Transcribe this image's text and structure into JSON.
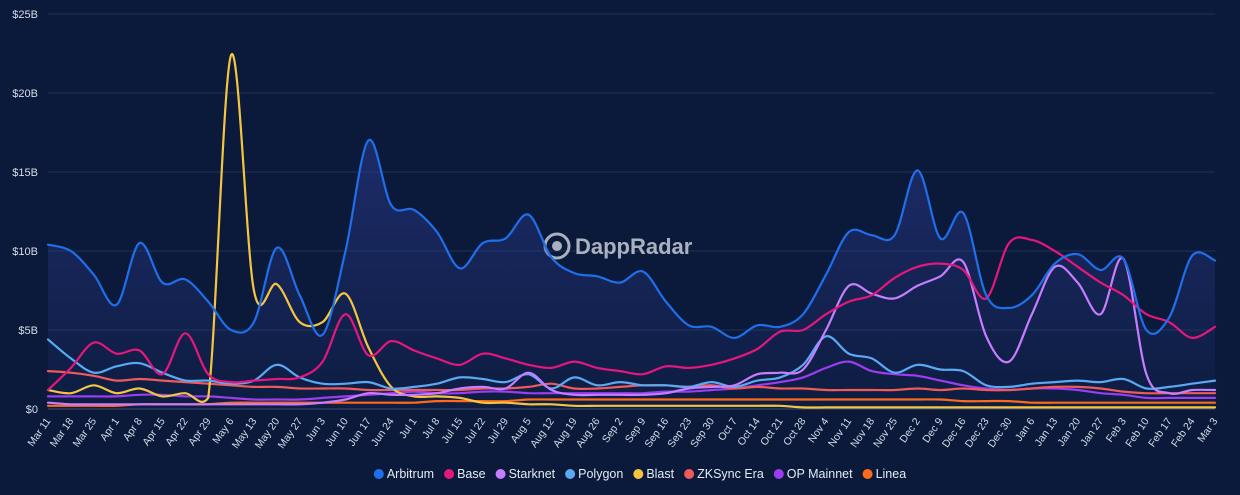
{
  "chart_data": {
    "type": "line",
    "watermark": "DappRadar",
    "y_ticks": [
      "$0",
      "$5B",
      "$10B",
      "$15B",
      "$20B",
      "$25B"
    ],
    "ylim": [
      0,
      25
    ],
    "categories": [
      "Mar 11",
      "Mar 18",
      "Mar 25",
      "Apr 1",
      "Apr 8",
      "Apr 15",
      "Apr 22",
      "Apr 29",
      "May 6",
      "May 13",
      "May 20",
      "May 27",
      "Jun 3",
      "Jun 10",
      "Jun 17",
      "Jun 24",
      "Jul 1",
      "Jul 8",
      "Jul 15",
      "Jul 22",
      "Jul 29",
      "Aug 5",
      "Aug 12",
      "Aug 19",
      "Aug 26",
      "Sep 2",
      "Sep 9",
      "Sep 16",
      "Sep 23",
      "Sep 30",
      "Oct 7",
      "Oct 14",
      "Oct 21",
      "Oct 28",
      "Nov 4",
      "Nov 11",
      "Nov 18",
      "Nov 25",
      "Dec 2",
      "Dec 9",
      "Dec 16",
      "Dec 23",
      "Dec 30",
      "Jan 6",
      "Jan 13",
      "Jan 20",
      "Jan 27",
      "Feb 3",
      "Feb 10",
      "Feb 17",
      "Feb 24",
      "Mar 3"
    ],
    "series": [
      {
        "name": "Arbitrum",
        "color": "#1f6feb",
        "fill": true,
        "values": [
          10.4,
          10.0,
          8.5,
          6.6,
          10.5,
          8.0,
          8.2,
          6.8,
          5.0,
          5.5,
          10.2,
          7.2,
          4.7,
          10.0,
          17.0,
          12.9,
          12.6,
          11.2,
          8.9,
          10.5,
          10.8,
          12.3,
          9.6,
          8.6,
          8.4,
          8.0,
          8.7,
          6.8,
          5.3,
          5.2,
          4.5,
          5.3,
          5.2,
          6.0,
          8.5,
          11.2,
          11.0,
          11.0,
          15.1,
          10.8,
          12.4,
          7.2,
          6.4,
          7.2,
          9.2,
          9.8,
          8.8,
          9.5,
          5.0,
          5.8,
          9.7,
          9.4
        ]
      },
      {
        "name": "Base",
        "color": "#e5177d",
        "fill": false,
        "values": [
          1.2,
          2.6,
          4.2,
          3.5,
          3.7,
          2.2,
          4.8,
          2.2,
          1.7,
          1.8,
          1.9,
          2.0,
          3.0,
          6.0,
          3.4,
          4.3,
          3.7,
          3.2,
          2.8,
          3.5,
          3.2,
          2.8,
          2.6,
          3.0,
          2.6,
          2.4,
          2.2,
          2.7,
          2.6,
          2.8,
          3.2,
          3.8,
          4.9,
          5.0,
          6.0,
          6.8,
          7.2,
          8.3,
          9.0,
          9.2,
          8.8,
          7.0,
          10.5,
          10.7,
          10.0,
          9.0,
          8.0,
          7.2,
          6.0,
          5.5,
          4.5,
          5.2
        ]
      },
      {
        "name": "Starknet",
        "color": "#c77dff",
        "fill": false,
        "values": [
          0.4,
          0.3,
          0.3,
          0.3,
          0.3,
          0.3,
          0.3,
          0.3,
          0.3,
          0.3,
          0.3,
          0.3,
          0.4,
          0.6,
          1.0,
          0.9,
          0.9,
          1.0,
          1.3,
          1.4,
          1.3,
          2.3,
          1.2,
          0.9,
          0.9,
          0.9,
          0.9,
          1.0,
          1.3,
          1.4,
          1.5,
          2.2,
          2.3,
          2.5,
          5.0,
          7.8,
          7.3,
          7.0,
          7.8,
          8.4,
          9.3,
          4.6,
          3.0,
          6.0,
          9.0,
          8.0,
          6.0,
          9.5,
          2.2,
          1.0,
          1.2,
          1.2
        ]
      },
      {
        "name": "Polygon",
        "color": "#5aa9f5",
        "fill": false,
        "values": [
          4.4,
          3.2,
          2.3,
          2.7,
          2.9,
          2.3,
          1.8,
          1.8,
          1.6,
          1.8,
          2.8,
          2.0,
          1.6,
          1.6,
          1.7,
          1.3,
          1.4,
          1.6,
          2.0,
          1.9,
          1.7,
          2.2,
          1.3,
          2.0,
          1.5,
          1.7,
          1.5,
          1.5,
          1.4,
          1.7,
          1.4,
          1.8,
          2.0,
          2.8,
          4.6,
          3.5,
          3.2,
          2.3,
          2.8,
          2.5,
          2.4,
          1.5,
          1.4,
          1.6,
          1.7,
          1.8,
          1.7,
          1.9,
          1.3,
          1.4,
          1.6,
          1.8
        ]
      },
      {
        "name": "Blast",
        "color": "#f5c542",
        "fill": false,
        "values": [
          1.2,
          1.0,
          1.5,
          1.0,
          1.3,
          0.8,
          1.0,
          0.7,
          22.4,
          7.5,
          7.9,
          5.5,
          5.5,
          7.3,
          3.9,
          1.4,
          0.8,
          0.8,
          0.7,
          0.4,
          0.4,
          0.3,
          0.3,
          0.2,
          0.2,
          0.2,
          0.2,
          0.2,
          0.2,
          0.2,
          0.2,
          0.2,
          0.2,
          0.1,
          0.1,
          0.1,
          0.1,
          0.1,
          0.1,
          0.1,
          0.1,
          0.1,
          0.1,
          0.1,
          0.1,
          0.1,
          0.1,
          0.1,
          0.1,
          0.1,
          0.1,
          0.1
        ]
      },
      {
        "name": "ZKSync Era",
        "color": "#f05a5a",
        "fill": false,
        "values": [
          2.4,
          2.3,
          2.1,
          1.8,
          1.9,
          1.8,
          1.7,
          1.6,
          1.5,
          1.4,
          1.4,
          1.3,
          1.3,
          1.3,
          1.2,
          1.2,
          1.2,
          1.2,
          1.2,
          1.3,
          1.3,
          1.4,
          1.6,
          1.3,
          1.3,
          1.4,
          1.5,
          1.5,
          1.4,
          1.5,
          1.3,
          1.4,
          1.3,
          1.3,
          1.2,
          1.2,
          1.2,
          1.2,
          1.3,
          1.2,
          1.3,
          1.2,
          1.2,
          1.3,
          1.4,
          1.4,
          1.3,
          1.1,
          1.0,
          1.0,
          1.0,
          1.0
        ]
      },
      {
        "name": "OP Mainnet",
        "color": "#9b3df0",
        "fill": false,
        "values": [
          0.8,
          0.8,
          0.8,
          0.8,
          0.9,
          0.9,
          0.8,
          0.8,
          0.7,
          0.6,
          0.6,
          0.6,
          0.7,
          0.8,
          0.9,
          1.0,
          1.1,
          1.0,
          1.0,
          1.1,
          1.1,
          1.0,
          1.0,
          1.0,
          1.0,
          1.0,
          1.0,
          1.1,
          1.1,
          1.2,
          1.3,
          1.5,
          1.7,
          2.0,
          2.6,
          3.0,
          2.4,
          2.2,
          2.1,
          1.8,
          1.5,
          1.3,
          1.2,
          1.3,
          1.3,
          1.2,
          1.0,
          0.9,
          0.7,
          0.7,
          0.7,
          0.7
        ]
      },
      {
        "name": "Linea",
        "color": "#ff6a1a",
        "fill": false,
        "values": [
          0.2,
          0.2,
          0.2,
          0.2,
          0.3,
          0.3,
          0.3,
          0.3,
          0.4,
          0.4,
          0.4,
          0.4,
          0.4,
          0.4,
          0.4,
          0.4,
          0.4,
          0.5,
          0.5,
          0.5,
          0.5,
          0.6,
          0.6,
          0.6,
          0.6,
          0.6,
          0.6,
          0.6,
          0.6,
          0.6,
          0.6,
          0.6,
          0.6,
          0.6,
          0.6,
          0.6,
          0.6,
          0.6,
          0.6,
          0.6,
          0.5,
          0.5,
          0.5,
          0.4,
          0.4,
          0.4,
          0.4,
          0.4,
          0.4,
          0.4,
          0.4,
          0.4
        ]
      }
    ]
  }
}
